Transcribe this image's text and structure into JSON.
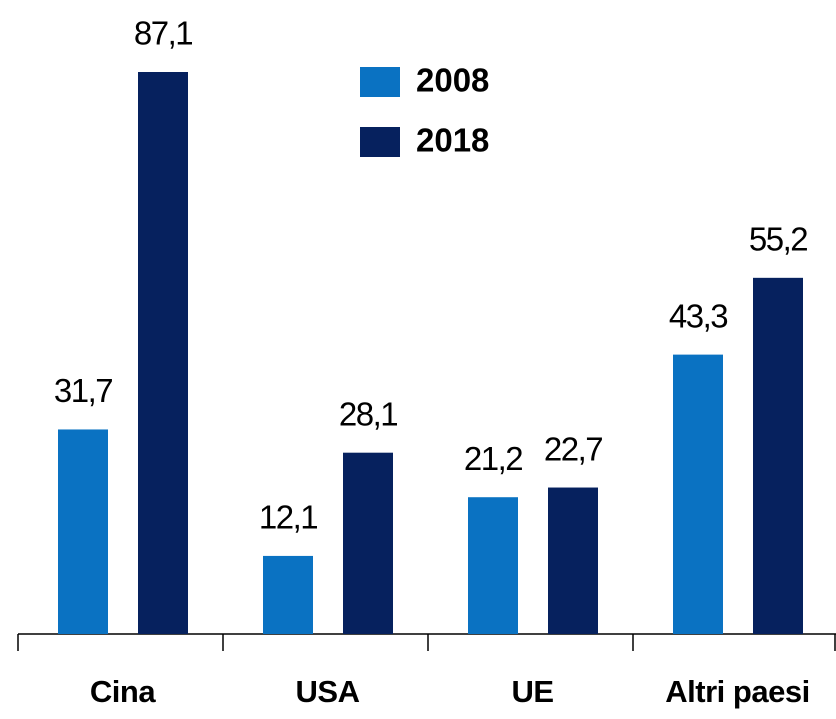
{
  "chart_data": {
    "type": "bar",
    "categories": [
      "Cina",
      "USA",
      "UE",
      "Altri paesi"
    ],
    "series": [
      {
        "name": "2008",
        "color": "#0a72c2",
        "values": [
          31.7,
          12.1,
          21.2,
          43.3
        ],
        "value_labels": [
          "31,7",
          "12,1",
          "21,2",
          "43,3"
        ]
      },
      {
        "name": "2018",
        "color": "#06215e",
        "values": [
          87.1,
          28.1,
          22.7,
          55.2
        ],
        "value_labels": [
          "87,1",
          "28,1",
          "22,7",
          "55,2"
        ]
      }
    ],
    "legend": "top-center"
  }
}
